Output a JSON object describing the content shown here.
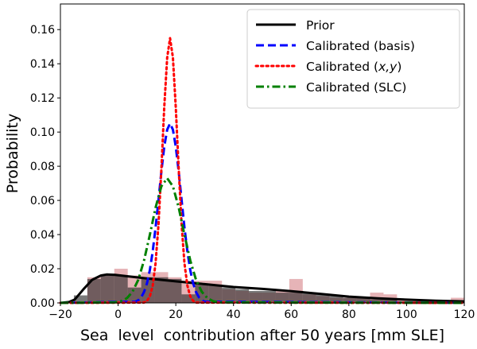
{
  "chart_data": {
    "type": "line",
    "title": "",
    "xlabel": "Sea  level  contribution after 50 years [mm SLE]",
    "ylabel": "Probability",
    "xlim": [
      -20,
      120
    ],
    "ylim": [
      0,
      0.175
    ],
    "xticks": [
      -20,
      0,
      20,
      40,
      60,
      80,
      100,
      120
    ],
    "xtick_labels": [
      "−20",
      "0",
      "20",
      "40",
      "60",
      "80",
      "100",
      "120"
    ],
    "yticks": [
      0,
      0.02,
      0.04,
      0.06,
      0.08,
      0.1,
      0.12,
      0.14,
      0.16
    ],
    "ytick_labels": [
      "0.00",
      "0.02",
      "0.04",
      "0.06",
      "0.08",
      "0.10",
      "0.12",
      "0.14",
      "0.16"
    ],
    "grid": false,
    "legend_position": "top-right",
    "histograms": {
      "bin_start": -15.33,
      "bin_width": 4.667,
      "pink": {
        "color": "#c8585f",
        "values": [
          0,
          0.015,
          0.016,
          0.02,
          0.016,
          0.018,
          0.018,
          0.015,
          0.013,
          0.013,
          0.013,
          0.008,
          0.007,
          0.006,
          0.006,
          0.007,
          0.014,
          0.005,
          0.004,
          0.003,
          0.003,
          0.003,
          0.006,
          0.005,
          0.002,
          0.001,
          0.001,
          0.001,
          0.003
        ]
      },
      "gray": {
        "color": "#262626",
        "values": [
          0.0044,
          0.014,
          0.016,
          0.016,
          0.009,
          0.015,
          0.015,
          0.014,
          0.005,
          0.011,
          0.01,
          0.009,
          0.008,
          0.007,
          0.007,
          0.006,
          0.006,
          0.006,
          0.005,
          0.004,
          0.003,
          0.003,
          0.002,
          0.002,
          0.001,
          0.001,
          0.001,
          0.001,
          0.001
        ]
      }
    },
    "series": [
      {
        "name": "Prior",
        "color": "#000000",
        "style": "solid",
        "x": [
          -20,
          -17,
          -15,
          -12,
          -9,
          -6,
          -4,
          -1,
          5,
          10,
          20,
          30,
          40,
          50,
          60,
          70,
          80,
          90,
          100,
          110,
          120
        ],
        "y": [
          0,
          0.0005,
          0.002,
          0.008,
          0.0135,
          0.016,
          0.0166,
          0.0164,
          0.0152,
          0.0143,
          0.0126,
          0.011,
          0.0093,
          0.0082,
          0.0069,
          0.0053,
          0.0037,
          0.0027,
          0.0019,
          0.0013,
          0.0009
        ]
      },
      {
        "name": "Calibrated (basis)",
        "color": "#0000ff",
        "style": "dashed",
        "x": [
          -20,
          6,
          7,
          8,
          9,
          10,
          11,
          12,
          13,
          14,
          15,
          16,
          17,
          18,
          19,
          20,
          21,
          22,
          23,
          24,
          25,
          26,
          27,
          28,
          29,
          30,
          120
        ],
        "y": [
          0,
          0.0007,
          0.0016,
          0.0033,
          0.0064,
          0.0115,
          0.0192,
          0.0302,
          0.0442,
          0.0603,
          0.0769,
          0.0915,
          0.1014,
          0.105,
          0.1014,
          0.0915,
          0.0769,
          0.0603,
          0.0442,
          0.0302,
          0.0192,
          0.0115,
          0.0064,
          0.0033,
          0.0016,
          0.0007,
          0
        ]
      },
      {
        "name": "Calibrated (x,y)",
        "color": "#ff0000",
        "style": "dotted",
        "x": [
          -20,
          9,
          10,
          11,
          12,
          13,
          14,
          15,
          16,
          17,
          18,
          19,
          20,
          21,
          22,
          23,
          24,
          25,
          26,
          27,
          120
        ],
        "y": [
          0,
          0.0002,
          0.0012,
          0.0038,
          0.0101,
          0.0233,
          0.0461,
          0.0784,
          0.1145,
          0.1437,
          0.155,
          0.1437,
          0.1145,
          0.0784,
          0.0461,
          0.0233,
          0.0101,
          0.0038,
          0.0012,
          0.0002,
          0
        ]
      },
      {
        "name": "Calibrated (SLC)",
        "color": "#008000",
        "style": "dashdot",
        "x": [
          -20,
          -1,
          1,
          3,
          5,
          7,
          9,
          11,
          13,
          15,
          17,
          19,
          21,
          23,
          25,
          27,
          29,
          31,
          33,
          35,
          120
        ],
        "y": [
          0,
          0.0003,
          0.001,
          0.0027,
          0.0065,
          0.0136,
          0.0249,
          0.0399,
          0.0558,
          0.0683,
          0.073,
          0.0683,
          0.0558,
          0.0399,
          0.0249,
          0.0136,
          0.0065,
          0.0027,
          0.001,
          0.0003,
          0
        ]
      }
    ]
  }
}
